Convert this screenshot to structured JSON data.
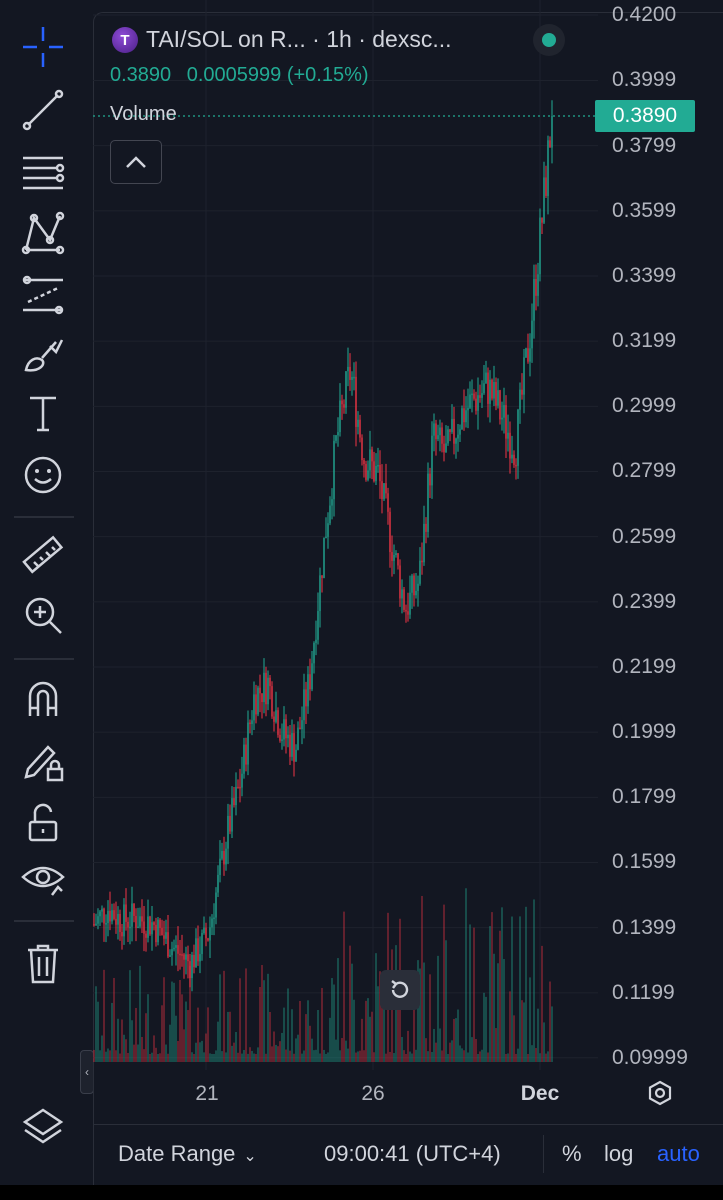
{
  "legend": {
    "symbol": "TAI/SOL on R...",
    "timeframe": "· 1h · dexsc...",
    "price": "0.3890",
    "change": "0.0005999 (+0.15%)",
    "volume_label": "Volume"
  },
  "last_price_tag": "0.3890",
  "colors": {
    "up": "#22ab94",
    "down": "#f23645",
    "bg": "#131722",
    "grid": "#1e222d",
    "accent": "#2962ff"
  },
  "y_axis": [
    "0.4200",
    "0.3999",
    "0.3799",
    "0.3599",
    "0.3399",
    "0.3199",
    "0.2999",
    "0.2799",
    "0.2599",
    "0.2399",
    "0.2199",
    "0.1999",
    "0.1799",
    "0.1599",
    "0.1399",
    "0.1199",
    "0.09999"
  ],
  "x_axis": [
    "21",
    "26",
    "Dec"
  ],
  "bottom_bar": {
    "date_range": "Date Range",
    "clock": "09:00:41 (UTC+4)",
    "percent": "%",
    "log": "log",
    "auto": "auto"
  },
  "toolbar_icons": [
    "crosshair-icon",
    "trend-line-icon",
    "fib-lines-icon",
    "pattern-icon",
    "prediction-icon",
    "brush-icon",
    "text-icon",
    "emoji-icon",
    "ruler-icon",
    "zoom-in-icon",
    "magnet-icon",
    "lock-drawing-icon",
    "unlock-icon",
    "eye-icon",
    "trash-icon",
    "layers-icon"
  ],
  "chart_data": {
    "type": "candlestick",
    "title": "TAI/SOL on R... · 1h · dexsc...",
    "ylim": [
      0.0999,
      0.42
    ],
    "y_scale": "linear",
    "x_ticks": [
      "21",
      "26",
      "Dec"
    ],
    "legend_placement": "top-left",
    "grid": true,
    "path": [
      [
        0,
        0.141
      ],
      [
        0.03,
        0.146
      ],
      [
        0.06,
        0.142
      ],
      [
        0.09,
        0.143
      ],
      [
        0.13,
        0.141
      ],
      [
        0.17,
        0.134
      ],
      [
        0.21,
        0.129
      ],
      [
        0.25,
        0.138
      ],
      [
        0.29,
        0.168
      ],
      [
        0.32,
        0.185
      ],
      [
        0.35,
        0.211
      ],
      [
        0.38,
        0.215
      ],
      [
        0.41,
        0.2
      ],
      [
        0.44,
        0.195
      ],
      [
        0.47,
        0.215
      ],
      [
        0.5,
        0.255
      ],
      [
        0.53,
        0.29
      ],
      [
        0.56,
        0.311
      ],
      [
        0.59,
        0.284
      ],
      [
        0.62,
        0.279
      ],
      [
        0.65,
        0.258
      ],
      [
        0.68,
        0.238
      ],
      [
        0.71,
        0.246
      ],
      [
        0.74,
        0.29
      ],
      [
        0.77,
        0.285
      ],
      [
        0.8,
        0.297
      ],
      [
        0.83,
        0.302
      ],
      [
        0.86,
        0.306
      ],
      [
        0.89,
        0.297
      ],
      [
        0.92,
        0.287
      ],
      [
        0.95,
        0.32
      ],
      [
        0.98,
        0.36
      ],
      [
        1.0,
        0.389
      ]
    ],
    "last_price": 0.389
  }
}
